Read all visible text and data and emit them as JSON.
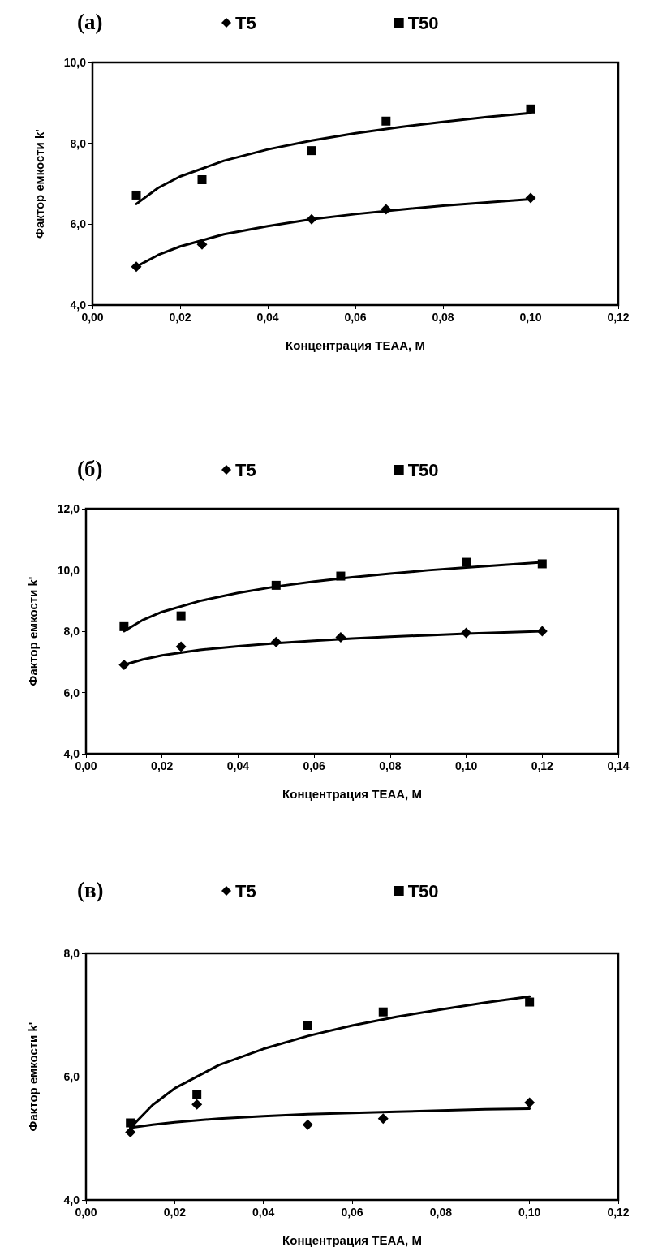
{
  "chart_data": [
    {
      "type": "scatter",
      "title": "(a)",
      "xlabel": "Концентрация ТЕАА, М",
      "ylabel": "Фактор емкости k'",
      "legend": "top",
      "grid": false,
      "xlim": [
        0,
        0.12
      ],
      "xticks": [
        {
          "value": 0,
          "label": "0,00"
        },
        {
          "value": 0.02,
          "label": "0,02"
        },
        {
          "value": 0.04,
          "label": "0,04"
        },
        {
          "value": 0.06,
          "label": "0,06"
        },
        {
          "value": 0.08,
          "label": "0,08"
        },
        {
          "value": 0.1,
          "label": "0,10"
        },
        {
          "value": 0.12,
          "label": "0,12"
        }
      ],
      "ylim": [
        4,
        10
      ],
      "yticks": [
        {
          "value": 4,
          "label": "4,0"
        },
        {
          "value": 6,
          "label": "6,0"
        },
        {
          "value": 8,
          "label": "8,0"
        },
        {
          "value": 10,
          "label": "10,0"
        }
      ],
      "series": [
        {
          "name": "T5",
          "marker": "diamond",
          "color": "#000000",
          "x": [
            0.01,
            0.025,
            0.05,
            0.067,
            0.1
          ],
          "values": [
            4.95,
            5.5,
            6.12,
            6.37,
            6.65
          ]
        },
        {
          "name": "T50",
          "marker": "square",
          "color": "#000000",
          "x": [
            0.01,
            0.025,
            0.05,
            0.067,
            0.1
          ],
          "values": [
            6.72,
            7.1,
            7.82,
            8.55,
            8.85
          ]
        },
        {
          "type": "line",
          "marker": "none",
          "line_style": "solid",
          "color": "#000000",
          "x": [
            0.01,
            0.015,
            0.02,
            0.03,
            0.04,
            0.05,
            0.06,
            0.07,
            0.08,
            0.09,
            0.1
          ],
          "values": [
            4.95,
            5.24,
            5.45,
            5.75,
            5.95,
            6.12,
            6.25,
            6.36,
            6.46,
            6.54,
            6.62
          ]
        },
        {
          "type": "line",
          "marker": "none",
          "line_style": "solid",
          "color": "#000000",
          "x": [
            0.01,
            0.015,
            0.02,
            0.03,
            0.04,
            0.05,
            0.06,
            0.07,
            0.08,
            0.09,
            0.1
          ],
          "values": [
            6.5,
            6.9,
            7.18,
            7.57,
            7.85,
            8.07,
            8.25,
            8.4,
            8.53,
            8.65,
            8.75
          ]
        }
      ]
    },
    {
      "type": "scatter",
      "title": "(б)",
      "xlabel": "Концентрация ТЕАА, М",
      "ylabel": "Фактор емкости k'",
      "legend": "top",
      "grid": false,
      "xlim": [
        0,
        0.14
      ],
      "xticks": [
        {
          "value": 0,
          "label": "0,00"
        },
        {
          "value": 0.02,
          "label": "0,02"
        },
        {
          "value": 0.04,
          "label": "0,04"
        },
        {
          "value": 0.06,
          "label": "0,06"
        },
        {
          "value": 0.08,
          "label": "0,08"
        },
        {
          "value": 0.1,
          "label": "0,10"
        },
        {
          "value": 0.12,
          "label": "0,12"
        },
        {
          "value": 0.14,
          "label": "0,14"
        }
      ],
      "ylim": [
        4,
        12
      ],
      "yticks": [
        {
          "value": 4,
          "label": "4,0"
        },
        {
          "value": 6,
          "label": "6,0"
        },
        {
          "value": 8,
          "label": "8,0"
        },
        {
          "value": 10,
          "label": "10,0"
        },
        {
          "value": 12,
          "label": "12,0"
        }
      ],
      "series": [
        {
          "name": "T5",
          "marker": "diamond",
          "color": "#000000",
          "x": [
            0.01,
            0.025,
            0.05,
            0.067,
            0.1,
            0.12
          ],
          "values": [
            6.9,
            7.5,
            7.65,
            7.8,
            7.95,
            8.0
          ]
        },
        {
          "name": "T50",
          "marker": "square",
          "color": "#000000",
          "x": [
            0.01,
            0.025,
            0.05,
            0.067,
            0.1,
            0.12
          ],
          "values": [
            8.15,
            8.5,
            9.5,
            9.8,
            10.25,
            10.2
          ]
        },
        {
          "type": "line",
          "marker": "none",
          "line_style": "solid",
          "color": "#000000",
          "x": [
            0.01,
            0.015,
            0.02,
            0.03,
            0.04,
            0.05,
            0.06,
            0.07,
            0.08,
            0.09,
            0.1,
            0.12
          ],
          "values": [
            6.9,
            7.08,
            7.21,
            7.39,
            7.51,
            7.61,
            7.69,
            7.76,
            7.82,
            7.87,
            7.92,
            8.0
          ]
        },
        {
          "type": "line",
          "marker": "none",
          "line_style": "solid",
          "color": "#000000",
          "x": [
            0.01,
            0.015,
            0.02,
            0.03,
            0.04,
            0.05,
            0.06,
            0.07,
            0.08,
            0.09,
            0.1,
            0.12
          ],
          "values": [
            8.0,
            8.37,
            8.63,
            8.99,
            9.25,
            9.46,
            9.62,
            9.76,
            9.88,
            9.99,
            10.08,
            10.25
          ]
        }
      ]
    },
    {
      "type": "scatter",
      "title": "(в)",
      "xlabel": "Концентрация ТЕАА, М",
      "ylabel": "Фактор емкости k'",
      "legend": "top",
      "grid": false,
      "xlim": [
        0,
        0.12
      ],
      "xticks": [
        {
          "value": 0,
          "label": "0,00"
        },
        {
          "value": 0.02,
          "label": "0,02"
        },
        {
          "value": 0.04,
          "label": "0,04"
        },
        {
          "value": 0.06,
          "label": "0,06"
        },
        {
          "value": 0.08,
          "label": "0,08"
        },
        {
          "value": 0.1,
          "label": "0,10"
        },
        {
          "value": 0.12,
          "label": "0,12"
        }
      ],
      "ylim": [
        4,
        8
      ],
      "yticks": [
        {
          "value": 4,
          "label": "4,0"
        },
        {
          "value": 6,
          "label": "6,0"
        },
        {
          "value": 8,
          "label": "8,0"
        }
      ],
      "series": [
        {
          "name": "T5",
          "marker": "diamond",
          "color": "#000000",
          "x": [
            0.01,
            0.025,
            0.05,
            0.067,
            0.1
          ],
          "values": [
            5.1,
            5.55,
            5.22,
            5.32,
            5.58
          ]
        },
        {
          "name": "T50",
          "marker": "square",
          "color": "#000000",
          "x": [
            0.01,
            0.025,
            0.05,
            0.067,
            0.1
          ],
          "values": [
            5.25,
            5.71,
            6.83,
            7.05,
            7.21
          ]
        },
        {
          "type": "line",
          "marker": "none",
          "line_style": "solid",
          "color": "#000000",
          "x": [
            0.01,
            0.015,
            0.02,
            0.03,
            0.04,
            0.05,
            0.06,
            0.07,
            0.08,
            0.09,
            0.1
          ],
          "values": [
            5.17,
            5.22,
            5.26,
            5.32,
            5.36,
            5.39,
            5.41,
            5.43,
            5.45,
            5.47,
            5.48
          ]
        },
        {
          "type": "line",
          "marker": "none",
          "line_style": "solid",
          "color": "#000000",
          "x": [
            0.01,
            0.015,
            0.02,
            0.03,
            0.04,
            0.05,
            0.06,
            0.07,
            0.08,
            0.09,
            0.1
          ],
          "values": [
            5.17,
            5.54,
            5.81,
            6.19,
            6.45,
            6.66,
            6.83,
            6.97,
            7.09,
            7.2,
            7.3
          ]
        }
      ]
    }
  ]
}
